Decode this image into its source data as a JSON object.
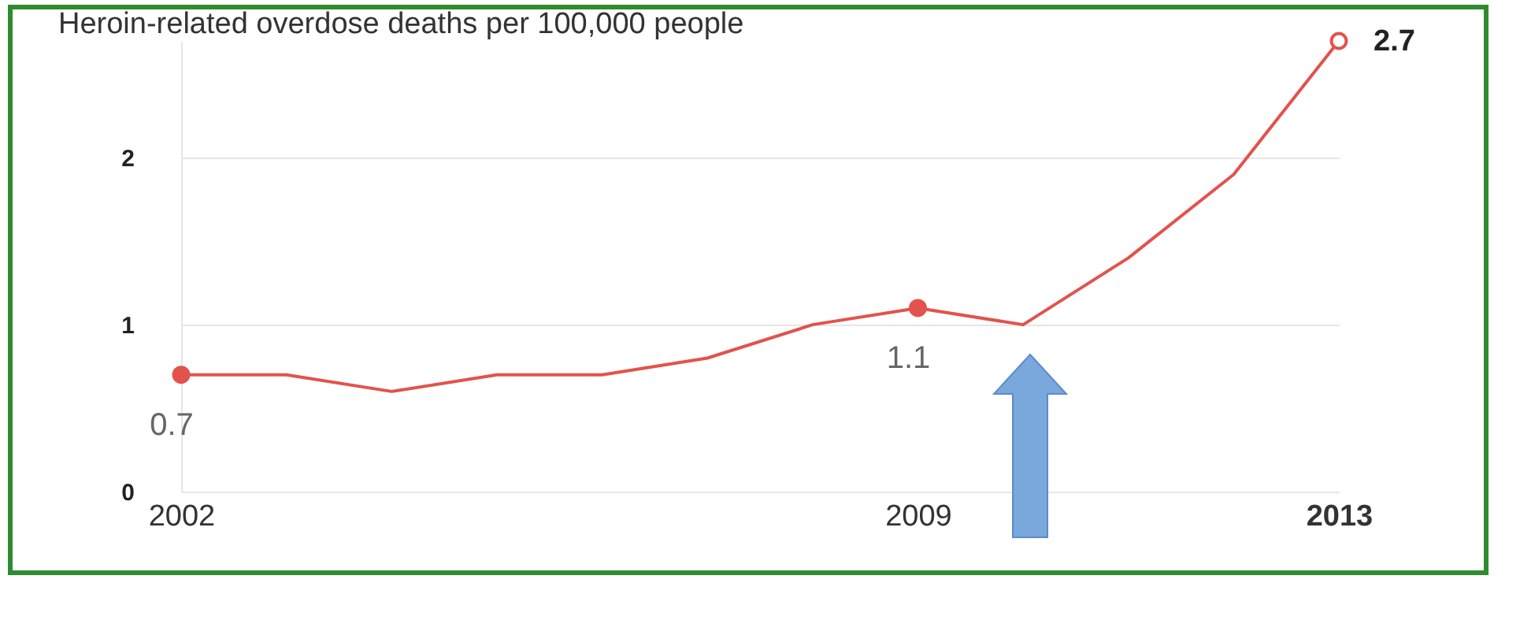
{
  "chart_data": {
    "type": "line",
    "title": "Heroin-related overdose deaths per 100,000 people",
    "x": [
      2002,
      2003,
      2004,
      2005,
      2006,
      2007,
      2008,
      2009,
      2010,
      2011,
      2012,
      2013
    ],
    "series": [
      {
        "color": "#e3524c",
        "values": [
          0.7,
          0.7,
          0.6,
          0.7,
          0.7,
          0.8,
          1.0,
          1.1,
          1.0,
          1.4,
          1.9,
          2.7
        ],
        "value_labels": [
          "0.7",
          null,
          null,
          null,
          null,
          null,
          null,
          "1.1",
          null,
          null,
          null,
          "2.7"
        ]
      }
    ],
    "xlim": [
      2002,
      2013
    ],
    "xticks": [
      2002,
      2009,
      2013
    ],
    "ylim": [
      0,
      2.7
    ],
    "yticks": [
      0,
      1,
      2
    ],
    "grid": "y",
    "line_style": "solid"
  }
}
